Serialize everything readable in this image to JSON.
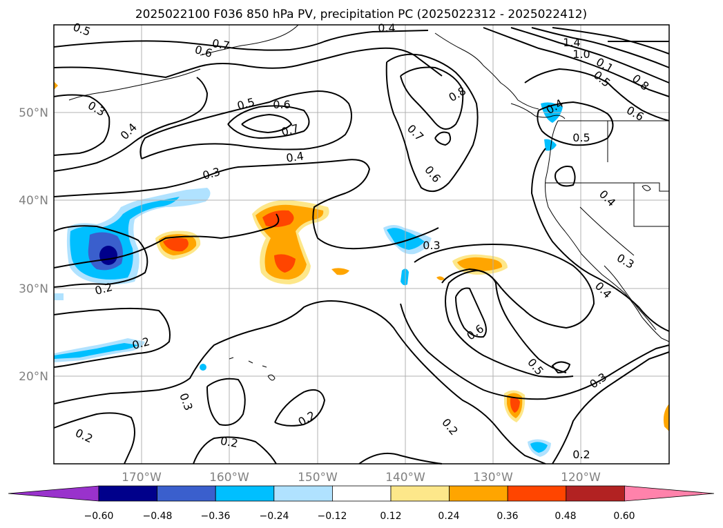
{
  "title": "2025022100 F036 850 hPa PV, precipitation PC (2025022312 - 2025022412)",
  "lon_ticks": [
    "170°W",
    "160°W",
    "150°W",
    "140°W",
    "130°W",
    "120°W"
  ],
  "lat_ticks": [
    "50°N",
    "40°N",
    "30°N",
    "20°N"
  ],
  "colorbar": {
    "colors": [
      "#9932cc",
      "#00008b",
      "#3a5fcd",
      "#00bfff",
      "#b0e2ff",
      "#ffffff",
      "#fde78a",
      "#ffa500",
      "#ff4500",
      "#b22222",
      "#ff82ab"
    ],
    "tick_labels": [
      "−0.60",
      "−0.48",
      "−0.36",
      "−0.24",
      "−0.12",
      "0.12",
      "0.24",
      "0.36",
      "0.48",
      "0.60"
    ]
  },
  "contour_labels": [
    {
      "text": "0.5"
    },
    {
      "text": "0.7"
    },
    {
      "text": "0.6"
    },
    {
      "text": "0.4"
    },
    {
      "text": "1.4"
    },
    {
      "text": "1.0"
    },
    {
      "text": "0.1"
    },
    {
      "text": "0.5"
    },
    {
      "text": "0.8"
    },
    {
      "text": "0.3"
    },
    {
      "text": "0.4"
    },
    {
      "text": "0.5"
    },
    {
      "text": "0.6"
    },
    {
      "text": "0.7"
    },
    {
      "text": "0.8"
    },
    {
      "text": "0.6"
    },
    {
      "text": "0.4"
    },
    {
      "text": "0.4"
    },
    {
      "text": "0.5"
    },
    {
      "text": "0.7"
    },
    {
      "text": "0.6"
    },
    {
      "text": "0.3"
    },
    {
      "text": "0.4"
    },
    {
      "text": "0.3"
    },
    {
      "text": "0.2"
    },
    {
      "text": "0.3"
    },
    {
      "text": "0.4"
    },
    {
      "text": "0.6"
    },
    {
      "text": "0.5"
    },
    {
      "text": "0.3"
    },
    {
      "text": "0.2"
    },
    {
      "text": "0.3"
    },
    {
      "text": "0.2"
    },
    {
      "text": "0.2"
    },
    {
      "text": "0.2"
    },
    {
      "text": "0.2"
    },
    {
      "text": "0.2"
    }
  ]
}
